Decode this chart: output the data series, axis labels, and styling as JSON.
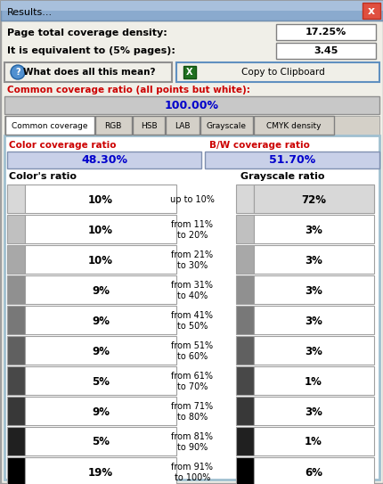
{
  "title": "Results...",
  "page_coverage_label": "Page total coverage density:",
  "page_coverage_value": "17.25%",
  "equivalent_label": "It is equivalent to (5% pages):",
  "equivalent_value": "3.45",
  "help_btn": "What does all this mean?",
  "copy_btn": "Copy to Clipboard",
  "common_ratio_label": "Common coverage ratio (all points but white):",
  "common_ratio_value": "100.00%",
  "tabs": [
    "Common coverage",
    "RGB",
    "HSB",
    "LAB",
    "Grayscale",
    "CMYK density"
  ],
  "color_ratio_label": "Color coverage ratio",
  "color_ratio_value": "48.30%",
  "bw_ratio_label": "B/W coverage ratio",
  "bw_ratio_value": "51.70%",
  "color_col_header": "Color's ratio",
  "gray_col_header": "Grayscale ratio",
  "range_labels": [
    "up to 10%",
    "from 11%\nto 20%",
    "from 21%\nto 30%",
    "from 31%\nto 40%",
    "from 41%\nto 50%",
    "from 51%\nto 60%",
    "from 61%\nto 70%",
    "from 71%\nto 80%",
    "from 81%\nto 90%",
    "from 91%\nto 100%"
  ],
  "color_values": [
    "10%",
    "10%",
    "10%",
    "9%",
    "9%",
    "9%",
    "5%",
    "9%",
    "5%",
    "19%"
  ],
  "gray_values": [
    "72%",
    "3%",
    "3%",
    "3%",
    "3%",
    "3%",
    "1%",
    "3%",
    "1%",
    "6%"
  ],
  "color_swatches": [
    "#d8d8d8",
    "#c0c0c0",
    "#a8a8a8",
    "#909090",
    "#787878",
    "#606060",
    "#484848",
    "#383838",
    "#202020",
    "#000000"
  ],
  "gray_swatches": [
    "#d8d8d8",
    "#c0c0c0",
    "#a8a8a8",
    "#909090",
    "#787878",
    "#606060",
    "#484848",
    "#383838",
    "#202020",
    "#000000"
  ],
  "bg_color": "#d4d0c8",
  "window_bg": "#f0efe8",
  "titlebar_bg": "#8aaace",
  "titlebar_text": "#000000",
  "close_btn_color": "#e05040",
  "red_label_color": "#cc0000",
  "blue_value_color": "#0000cc",
  "cell_bg": "#ffffff",
  "gray_bar_bg": "#c8c8c8",
  "blue_bar_bg": "#c8d0e8",
  "border_color": "#808080",
  "tab_bg": "#d4d0c8",
  "tab_active_bg": "#ffffff",
  "copy_btn_border": "#6090c0"
}
